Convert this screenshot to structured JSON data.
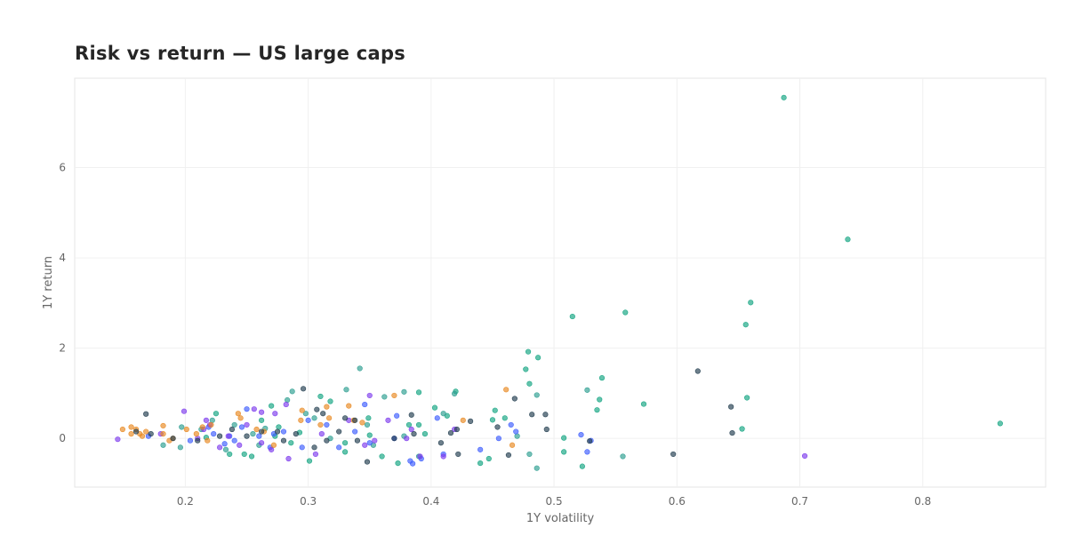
{
  "chart_data": {
    "type": "scatter",
    "title": "Risk vs return — US large caps",
    "xlabel": "1Y volatility",
    "ylabel": "1Y return",
    "xlim": [
      0.11,
      0.9
    ],
    "ylim": [
      -1.08,
      7.98
    ],
    "xticks": [
      0.2,
      0.3,
      0.4,
      0.5,
      0.6,
      0.7,
      0.8
    ],
    "yticks": [
      0,
      2,
      4,
      6
    ],
    "grid": true,
    "legend": "none",
    "colors": [
      "#2a9d8f",
      "#3b5bfd",
      "#7c3aed",
      "#e8871e",
      "#10a37f",
      "#1f3b4d"
    ],
    "series": [
      {
        "color": "#10a37f",
        "points": [
          [
            0.687,
            7.55
          ],
          [
            0.739,
            4.41
          ],
          [
            0.66,
            3.01
          ],
          [
            0.558,
            2.79
          ],
          [
            0.515,
            2.7
          ],
          [
            0.656,
            2.52
          ],
          [
            0.479,
            1.92
          ],
          [
            0.487,
            1.79
          ],
          [
            0.477,
            1.53
          ],
          [
            0.539,
            1.34
          ],
          [
            0.48,
            1.21
          ],
          [
            0.537,
            0.86
          ],
          [
            0.657,
            0.9
          ],
          [
            0.573,
            0.76
          ],
          [
            0.535,
            0.63
          ],
          [
            0.45,
            0.41
          ],
          [
            0.46,
            0.45
          ],
          [
            0.452,
            0.62
          ],
          [
            0.403,
            0.68
          ],
          [
            0.42,
            1.04
          ],
          [
            0.39,
            1.02
          ],
          [
            0.31,
            0.93
          ],
          [
            0.318,
            0.82
          ],
          [
            0.27,
            0.72
          ],
          [
            0.225,
            0.55
          ],
          [
            0.262,
            0.4
          ],
          [
            0.273,
            0.05
          ],
          [
            0.293,
            0.13
          ],
          [
            0.301,
            -0.5
          ],
          [
            0.33,
            -0.1
          ],
          [
            0.349,
            0.45
          ],
          [
            0.382,
            0.3
          ],
          [
            0.395,
            0.1
          ],
          [
            0.36,
            -0.4
          ],
          [
            0.44,
            -0.55
          ],
          [
            0.447,
            -0.45
          ],
          [
            0.508,
            -0.3
          ],
          [
            0.508,
            0.01
          ],
          [
            0.523,
            -0.62
          ],
          [
            0.653,
            0.21
          ],
          [
            0.863,
            0.33
          ],
          [
            0.248,
            -0.35
          ],
          [
            0.217,
            0.02
          ],
          [
            0.286,
            -0.1
          ],
          [
            0.373,
            -0.55
          ],
          [
            0.413,
            0.5
          ],
          [
            0.33,
            -0.3
          ],
          [
            0.236,
            -0.35
          ],
          [
            0.254,
            -0.4
          ],
          [
            0.276,
            0.25
          ],
          [
            0.35,
            0.07
          ],
          [
            0.39,
            0.3
          ]
        ]
      },
      {
        "color": "#2a9d8f",
        "points": [
          [
            0.342,
            1.55
          ],
          [
            0.331,
            1.08
          ],
          [
            0.287,
            1.04
          ],
          [
            0.378,
            1.03
          ],
          [
            0.419,
            0.99
          ],
          [
            0.527,
            1.07
          ],
          [
            0.486,
            0.96
          ],
          [
            0.362,
            0.92
          ],
          [
            0.283,
            0.85
          ],
          [
            0.255,
            0.1
          ],
          [
            0.213,
            0.2
          ],
          [
            0.196,
            -0.2
          ],
          [
            0.182,
            -0.15
          ],
          [
            0.233,
            -0.25
          ],
          [
            0.265,
            0.22
          ],
          [
            0.305,
            0.45
          ],
          [
            0.348,
            0.3
          ],
          [
            0.41,
            0.55
          ],
          [
            0.47,
            0.05
          ],
          [
            0.486,
            -0.66
          ],
          [
            0.556,
            -0.4
          ],
          [
            0.48,
            -0.35
          ],
          [
            0.39,
            -0.4
          ],
          [
            0.353,
            -0.15
          ],
          [
            0.318,
            0.0
          ],
          [
            0.26,
            -0.15
          ],
          [
            0.24,
            0.3
          ],
          [
            0.222,
            0.4
          ],
          [
            0.298,
            0.55
          ],
          [
            0.378,
            0.05
          ],
          [
            0.197,
            0.25
          ]
        ]
      },
      {
        "color": "#3b5bfd",
        "points": [
          [
            0.385,
            -0.56
          ],
          [
            0.24,
            -0.05
          ],
          [
            0.223,
            0.1
          ],
          [
            0.25,
            0.65
          ],
          [
            0.236,
            0.05
          ],
          [
            0.232,
            -0.12
          ],
          [
            0.26,
            0.05
          ],
          [
            0.269,
            -0.2
          ],
          [
            0.204,
            -0.05
          ],
          [
            0.219,
            0.25
          ],
          [
            0.3,
            0.4
          ],
          [
            0.315,
            0.3
          ],
          [
            0.295,
            -0.2
          ],
          [
            0.338,
            0.15
          ],
          [
            0.346,
            0.75
          ],
          [
            0.372,
            0.5
          ],
          [
            0.383,
            -0.5
          ],
          [
            0.392,
            -0.45
          ],
          [
            0.405,
            0.45
          ],
          [
            0.41,
            -0.35
          ],
          [
            0.44,
            -0.25
          ],
          [
            0.455,
            0.0
          ],
          [
            0.465,
            0.3
          ],
          [
            0.469,
            0.15
          ],
          [
            0.522,
            0.08
          ],
          [
            0.527,
            -0.3
          ],
          [
            0.53,
            -0.05
          ],
          [
            0.17,
            0.05
          ],
          [
            0.246,
            0.25
          ],
          [
            0.272,
            0.1
          ],
          [
            0.28,
            0.15
          ],
          [
            0.325,
            -0.2
          ],
          [
            0.35,
            -0.1
          ],
          [
            0.37,
            0.0
          ]
        ]
      },
      {
        "color": "#7c3aed",
        "points": [
          [
            0.199,
            0.6
          ],
          [
            0.256,
            0.65
          ],
          [
            0.262,
            0.58
          ],
          [
            0.273,
            0.55
          ],
          [
            0.282,
            0.75
          ],
          [
            0.217,
            0.4
          ],
          [
            0.22,
            0.3
          ],
          [
            0.215,
            0.2
          ],
          [
            0.228,
            -0.2
          ],
          [
            0.235,
            0.05
          ],
          [
            0.244,
            -0.15
          ],
          [
            0.262,
            -0.1
          ],
          [
            0.284,
            -0.45
          ],
          [
            0.306,
            -0.35
          ],
          [
            0.35,
            0.95
          ],
          [
            0.354,
            -0.05
          ],
          [
            0.365,
            0.4
          ],
          [
            0.38,
            0.0
          ],
          [
            0.384,
            0.2
          ],
          [
            0.391,
            -0.4
          ],
          [
            0.41,
            -0.4
          ],
          [
            0.419,
            0.2
          ],
          [
            0.704,
            -0.39
          ],
          [
            0.145,
            -0.02
          ],
          [
            0.18,
            0.1
          ],
          [
            0.21,
            0.0
          ],
          [
            0.25,
            0.3
          ],
          [
            0.27,
            -0.25
          ],
          [
            0.311,
            0.1
          ],
          [
            0.333,
            0.4
          ],
          [
            0.346,
            -0.15
          ]
        ]
      },
      {
        "color": "#e8871e",
        "points": [
          [
            0.156,
            0.25
          ],
          [
            0.16,
            0.2
          ],
          [
            0.163,
            0.1
          ],
          [
            0.149,
            0.2
          ],
          [
            0.165,
            0.05
          ],
          [
            0.182,
            0.1
          ],
          [
            0.187,
            -0.05
          ],
          [
            0.182,
            0.28
          ],
          [
            0.201,
            0.2
          ],
          [
            0.209,
            0.1
          ],
          [
            0.214,
            0.25
          ],
          [
            0.218,
            -0.05
          ],
          [
            0.221,
            0.3
          ],
          [
            0.243,
            0.55
          ],
          [
            0.245,
            0.45
          ],
          [
            0.258,
            0.2
          ],
          [
            0.264,
            0.15
          ],
          [
            0.272,
            -0.15
          ],
          [
            0.294,
            0.4
          ],
          [
            0.295,
            0.62
          ],
          [
            0.31,
            0.3
          ],
          [
            0.315,
            0.7
          ],
          [
            0.317,
            0.45
          ],
          [
            0.333,
            0.72
          ],
          [
            0.337,
            0.4
          ],
          [
            0.344,
            0.35
          ],
          [
            0.37,
            0.95
          ],
          [
            0.426,
            0.4
          ],
          [
            0.461,
            1.08
          ],
          [
            0.466,
            -0.15
          ],
          [
            0.156,
            0.1
          ],
          [
            0.168,
            0.15
          ],
          [
            0.19,
            0.0
          ]
        ]
      },
      {
        "color": "#1f3b4d",
        "points": [
          [
            0.296,
            1.1
          ],
          [
            0.168,
            0.54
          ],
          [
            0.307,
            0.64
          ],
          [
            0.312,
            0.55
          ],
          [
            0.33,
            0.45
          ],
          [
            0.338,
            0.4
          ],
          [
            0.384,
            0.52
          ],
          [
            0.421,
            0.2
          ],
          [
            0.432,
            0.38
          ],
          [
            0.468,
            0.88
          ],
          [
            0.482,
            0.53
          ],
          [
            0.493,
            0.53
          ],
          [
            0.494,
            0.2
          ],
          [
            0.529,
            -0.06
          ],
          [
            0.617,
            1.49
          ],
          [
            0.644,
            0.7
          ],
          [
            0.645,
            0.12
          ],
          [
            0.597,
            -0.35
          ],
          [
            0.463,
            -0.37
          ],
          [
            0.422,
            -0.35
          ],
          [
            0.408,
            -0.1
          ],
          [
            0.416,
            0.12
          ],
          [
            0.386,
            0.1
          ],
          [
            0.34,
            -0.05
          ],
          [
            0.348,
            -0.52
          ],
          [
            0.325,
            0.15
          ],
          [
            0.315,
            -0.05
          ],
          [
            0.305,
            -0.2
          ],
          [
            0.28,
            -0.05
          ],
          [
            0.275,
            0.15
          ],
          [
            0.262,
            0.15
          ],
          [
            0.238,
            0.2
          ],
          [
            0.228,
            0.05
          ],
          [
            0.21,
            -0.05
          ],
          [
            0.172,
            0.1
          ],
          [
            0.16,
            0.15
          ],
          [
            0.19,
            0.0
          ],
          [
            0.25,
            0.05
          ],
          [
            0.29,
            0.1
          ],
          [
            0.37,
            0.0
          ],
          [
            0.454,
            0.25
          ]
        ]
      }
    ]
  }
}
